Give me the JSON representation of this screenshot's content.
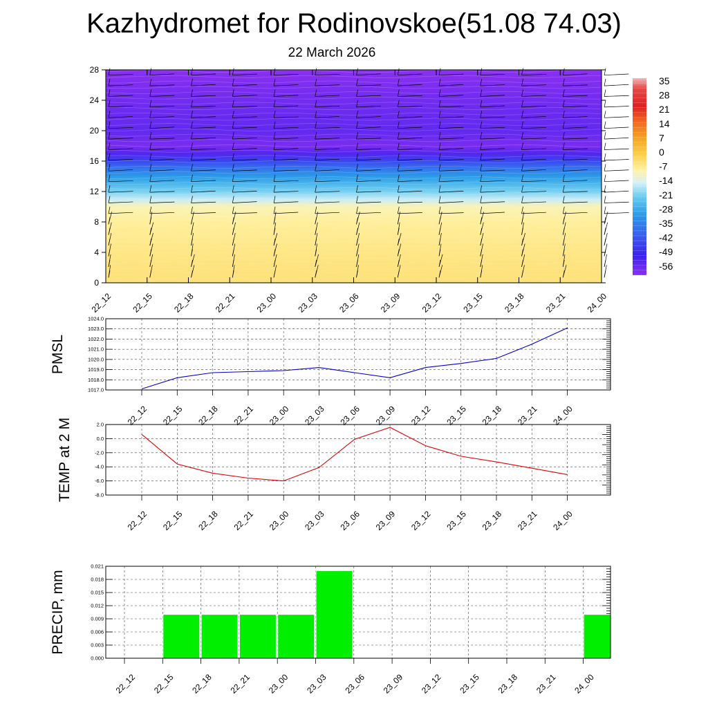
{
  "header": {
    "title": "Kazhydromet for Rodinovskoe(51.08 74.03)",
    "subtitle": "22 March 2026"
  },
  "colors": {
    "pmsl_line": "#0000cc",
    "temp_line": "#dd0000",
    "precip_bar": "#00ee00"
  },
  "chart_data": [
    {
      "type": "heatmap",
      "title": "",
      "xlabel": "",
      "ylabel": "",
      "x": [
        "22_12",
        "22_15",
        "22_18",
        "22_21",
        "23_00",
        "23_03",
        "23_06",
        "23_09",
        "23_12",
        "23_15",
        "23_18",
        "23_21",
        "24_00"
      ],
      "y_ticks": [
        0,
        4,
        8,
        12,
        16,
        20,
        24,
        28
      ],
      "ylim": [
        0,
        28
      ],
      "profile": [
        {
          "level": 0,
          "value": -4
        },
        {
          "level": 4,
          "value": -5
        },
        {
          "level": 8,
          "value": -7
        },
        {
          "level": 10,
          "value": -9
        },
        {
          "level": 11,
          "value": -15
        },
        {
          "level": 12,
          "value": -20
        },
        {
          "level": 13,
          "value": -25
        },
        {
          "level": 14,
          "value": -30
        },
        {
          "level": 15,
          "value": -36
        },
        {
          "level": 16,
          "value": -44
        },
        {
          "level": 17,
          "value": -53
        },
        {
          "level": 18,
          "value": -58
        },
        {
          "level": 20,
          "value": -55
        },
        {
          "level": 24,
          "value": -57
        },
        {
          "level": 28,
          "value": -60
        }
      ],
      "wind_barbs": true,
      "colorbar": {
        "labels": [
          "35",
          "28",
          "21",
          "14",
          "7",
          "0",
          "-7",
          "-14",
          "-21",
          "-28",
          "-35",
          "-42",
          "-49",
          "-56"
        ],
        "stops": [
          {
            "value": 38,
            "color": "#f2b8b8"
          },
          {
            "value": 33,
            "color": "#e64a4a"
          },
          {
            "value": 24,
            "color": "#e02020"
          },
          {
            "value": 16,
            "color": "#f26a1e"
          },
          {
            "value": 8,
            "color": "#f5a623"
          },
          {
            "value": 0,
            "color": "#fccf4a"
          },
          {
            "value": -8,
            "color": "#fff3a8"
          },
          {
            "value": -14,
            "color": "#d8f0f8"
          },
          {
            "value": -21,
            "color": "#68ccf0"
          },
          {
            "value": -30,
            "color": "#2a9be8"
          },
          {
            "value": -40,
            "color": "#3a5ef0"
          },
          {
            "value": -50,
            "color": "#3a22f0"
          },
          {
            "value": -60,
            "color": "#8a30f0"
          }
        ]
      }
    },
    {
      "type": "line",
      "title": "",
      "xlabel": "",
      "ylabel": "PMSL",
      "x": [
        "22_12",
        "22_15",
        "22_18",
        "22_21",
        "23_00",
        "23_03",
        "23_06",
        "23_09",
        "23_12",
        "23_15",
        "23_18",
        "23_21",
        "24_00"
      ],
      "series": [
        {
          "values": [
            1017.1,
            1018.2,
            1018.7,
            1018.8,
            1018.9,
            1019.2,
            1018.7,
            1018.2,
            1019.2,
            1019.6,
            1020.1,
            1021.5,
            1023.1
          ]
        }
      ],
      "ylim": [
        1017.0,
        1024.0
      ],
      "yticks": [
        "1017.0",
        "1018.0",
        "1019.0",
        "1020.0",
        "1021.0",
        "1022.0",
        "1023.0",
        "1024.0"
      ],
      "grid": true
    },
    {
      "type": "line",
      "title": "",
      "xlabel": "",
      "ylabel": "TEMP at 2 M",
      "x": [
        "22_12",
        "22_15",
        "22_18",
        "22_21",
        "23_00",
        "23_03",
        "23_06",
        "23_09",
        "23_12",
        "23_15",
        "23_18",
        "23_21",
        "24_00"
      ],
      "series": [
        {
          "values": [
            0.6,
            -3.6,
            -4.9,
            -5.6,
            -6.0,
            -4.1,
            -0.1,
            1.6,
            -1.0,
            -2.5,
            -3.3,
            -4.2,
            -5.1
          ]
        }
      ],
      "ylim": [
        -8.0,
        2.0
      ],
      "yticks": [
        "-8.0",
        "-6.0",
        "-4.0",
        "-2.0",
        "0.0",
        "2.0"
      ],
      "grid": true
    },
    {
      "type": "bar",
      "title": "",
      "xlabel": "",
      "ylabel": "PRECIP, mm",
      "categories": [
        "22_12",
        "22_15",
        "22_18",
        "22_21",
        "23_00",
        "23_03",
        "23_06",
        "23_09",
        "23_12",
        "23_15",
        "23_18",
        "23_21",
        "24_00"
      ],
      "values": [
        0,
        0.01,
        0.01,
        0.01,
        0.01,
        0.02,
        0,
        0,
        0,
        0,
        0,
        0,
        0.01
      ],
      "ylim": [
        0,
        0.021
      ],
      "yticks": [
        "0.000",
        "0.003",
        "0.006",
        "0.009",
        "0.012",
        "0.015",
        "0.018",
        "0.021"
      ],
      "grid": true
    }
  ]
}
